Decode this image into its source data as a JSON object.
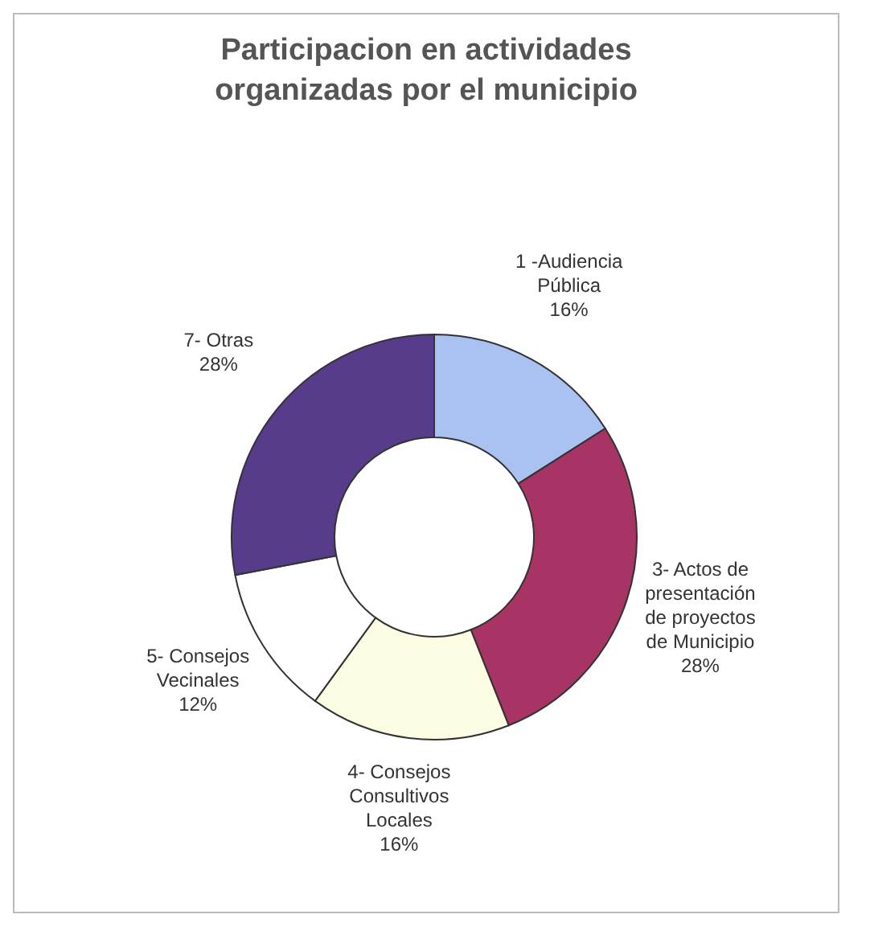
{
  "chart_data": {
    "type": "donut",
    "title": "Participacion en actividades\norganizadas por el municipio",
    "categories": [
      "1 -Audiencia\nPública",
      "3- Actos de\npresentación\nde proyectos\nde Municipio",
      "4- Consejos\nConsultivos\nLocales",
      "5- Consejos\nVecinales",
      "7- Otras"
    ],
    "values": [
      16,
      28,
      16,
      12,
      28
    ],
    "value_labels": [
      "16%",
      "28%",
      "16%",
      "12%",
      "28%"
    ],
    "colors": [
      "#a9c2f2",
      "#a83466",
      "#fdfde3",
      "#ffffff",
      "#583c8c"
    ],
    "legend": false
  }
}
